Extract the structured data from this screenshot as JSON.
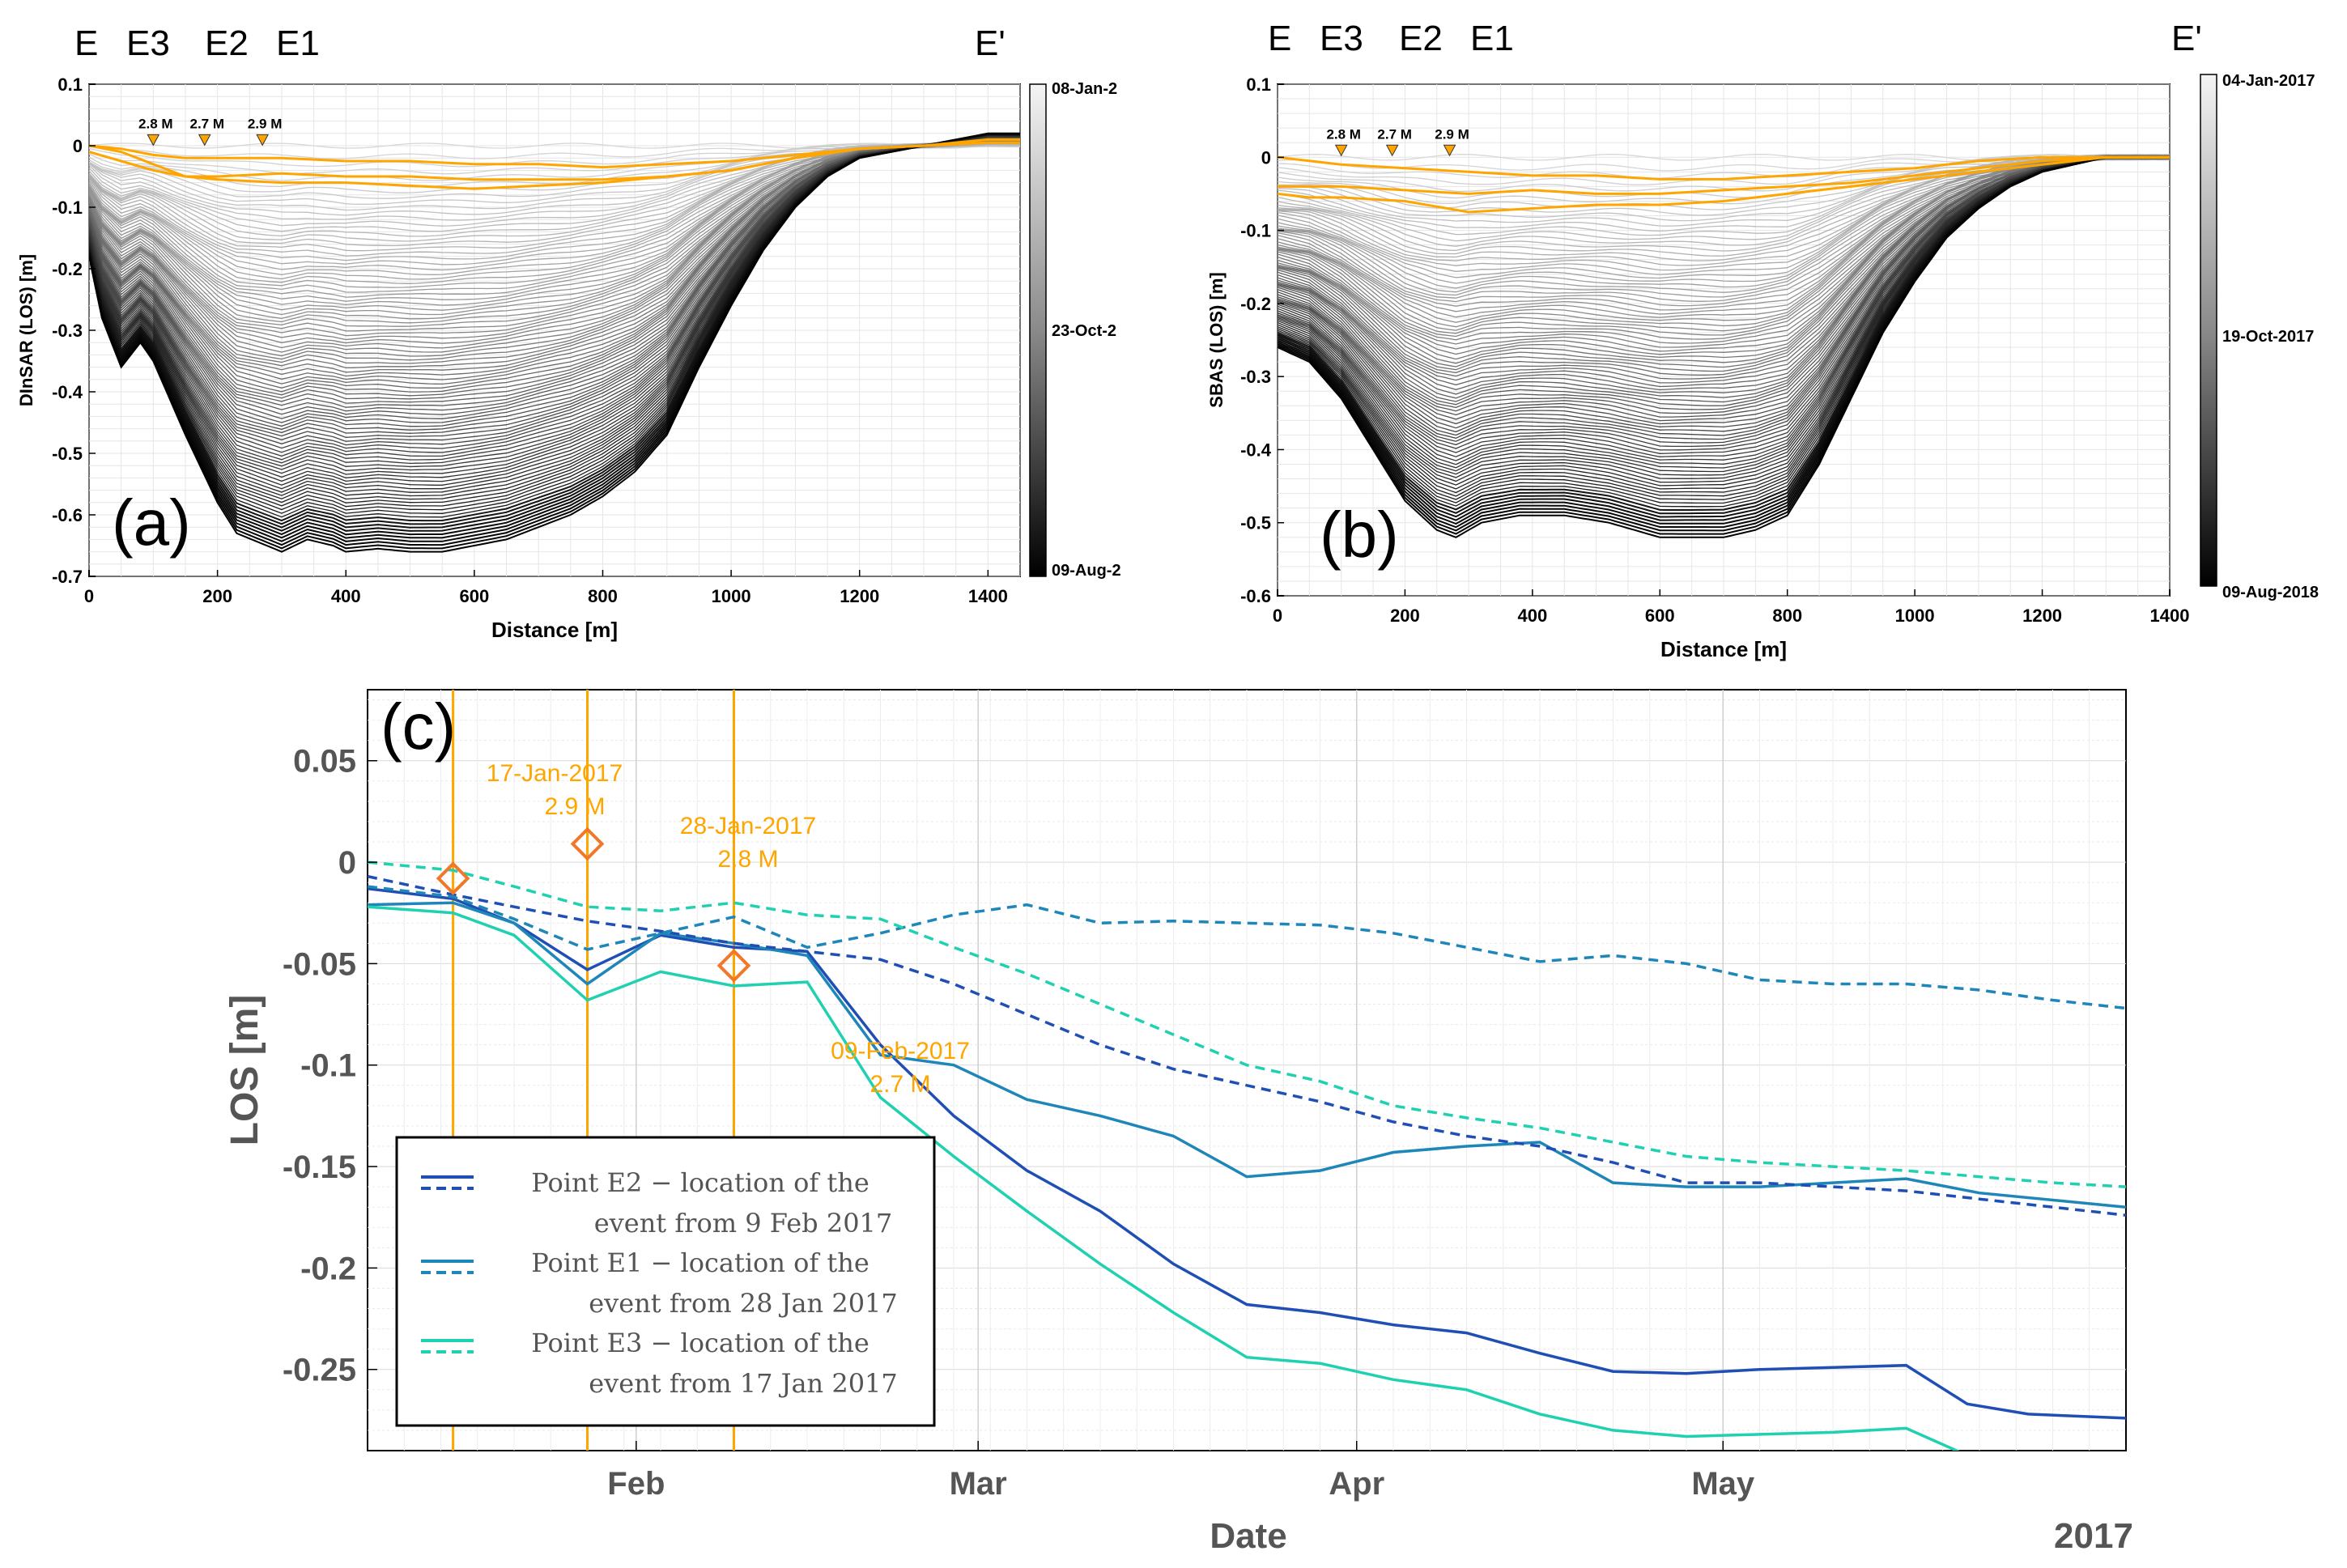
{
  "figure": {
    "panel_a_label": "(a)",
    "panel_b_label": "(b)",
    "panel_c_label": "(c)"
  },
  "profile_labels": {
    "start": "E",
    "e3": "E3",
    "e2": "E2",
    "e1": "E1",
    "end": "E'"
  },
  "colors": {
    "event_orange": "#FFA500",
    "marker_orange": "#F07828",
    "e2": "#1F4FB4",
    "e1": "#1E86B8",
    "e3": "#1FD1B0"
  },
  "chart_data": [
    {
      "id": "a",
      "type": "line",
      "xlabel": "Distance [m]",
      "ylabel": "DInSAR (LOS) [m]",
      "xlim": [
        0,
        1450
      ],
      "ylim": [
        -0.7,
        0.1
      ],
      "xticks": [
        0,
        200,
        400,
        600,
        800,
        1000,
        1200,
        1400
      ],
      "yticks": [
        -0.7,
        -0.6,
        -0.5,
        -0.4,
        -0.3,
        -0.2,
        -0.1,
        0,
        0.1
      ],
      "colorbar": {
        "top": "08-Jan-2",
        "middle": "23-Oct-2",
        "bottom": "09-Aug-2"
      },
      "event_markers": [
        {
          "distance": 100,
          "label": "2.8 M"
        },
        {
          "distance": 180,
          "label": "2.7 M"
        },
        {
          "distance": 270,
          "label": "2.9 M"
        }
      ],
      "series_count": 95,
      "final_profile": {
        "x": [
          0,
          20,
          50,
          80,
          100,
          150,
          200,
          230,
          300,
          340,
          380,
          400,
          450,
          500,
          550,
          600,
          650,
          700,
          750,
          800,
          850,
          900,
          950,
          1000,
          1050,
          1100,
          1150,
          1200,
          1250,
          1300,
          1350,
          1400,
          1450
        ],
        "y": [
          -0.18,
          -0.28,
          -0.36,
          -0.32,
          -0.35,
          -0.47,
          -0.58,
          -0.63,
          -0.66,
          -0.64,
          -0.65,
          -0.66,
          -0.655,
          -0.66,
          -0.66,
          -0.65,
          -0.64,
          -0.62,
          -0.6,
          -0.57,
          -0.53,
          -0.47,
          -0.36,
          -0.26,
          -0.17,
          -0.1,
          -0.05,
          -0.02,
          -0.01,
          0.0,
          0.01,
          0.02,
          0.02
        ]
      },
      "orange_profiles": [
        {
          "x": [
            0,
            50,
            100,
            150,
            200,
            300,
            400,
            500,
            600,
            700,
            800,
            900,
            1000,
            1100,
            1200,
            1300,
            1400,
            1450
          ],
          "y": [
            0,
            -0.01,
            -0.03,
            -0.05,
            -0.055,
            -0.06,
            -0.06,
            -0.065,
            -0.07,
            -0.065,
            -0.06,
            -0.05,
            -0.04,
            -0.02,
            -0.005,
            0.0,
            0.01,
            0.01
          ]
        },
        {
          "x": [
            0,
            50,
            100,
            150,
            200,
            300,
            400,
            500,
            600,
            700,
            800,
            900,
            1000,
            1100,
            1200,
            1300,
            1400,
            1450
          ],
          "y": [
            -0.01,
            -0.025,
            -0.04,
            -0.05,
            -0.05,
            -0.045,
            -0.05,
            -0.05,
            -0.055,
            -0.055,
            -0.055,
            -0.05,
            -0.04,
            -0.02,
            -0.005,
            0.0,
            0.005,
            0.005
          ]
        },
        {
          "x": [
            0,
            50,
            100,
            150,
            200,
            300,
            400,
            500,
            600,
            700,
            800,
            900,
            1000,
            1100,
            1200,
            1300,
            1400,
            1450
          ],
          "y": [
            0,
            -0.005,
            -0.015,
            -0.02,
            -0.02,
            -0.02,
            -0.025,
            -0.025,
            -0.03,
            -0.03,
            -0.035,
            -0.03,
            -0.025,
            -0.015,
            -0.005,
            0.0,
            0.005,
            0.005
          ]
        }
      ]
    },
    {
      "id": "b",
      "type": "line",
      "xlabel": "Distance [m]",
      "ylabel": "SBAS (LOS) [m]",
      "xlim": [
        0,
        1400
      ],
      "ylim": [
        -0.6,
        0.1
      ],
      "xticks": [
        0,
        200,
        400,
        600,
        800,
        1000,
        1200,
        1400
      ],
      "yticks": [
        -0.6,
        -0.5,
        -0.4,
        -0.3,
        -0.2,
        -0.1,
        0,
        0.1
      ],
      "colorbar": {
        "top": "04-Jan-2017",
        "middle": "19-Oct-2017",
        "bottom": "09-Aug-2018"
      },
      "event_markers": [
        {
          "distance": 100,
          "label": "2.8 M"
        },
        {
          "distance": 180,
          "label": "2.7 M"
        },
        {
          "distance": 270,
          "label": "2.9 M"
        }
      ],
      "series_count": 90,
      "final_profile": {
        "x": [
          0,
          50,
          100,
          150,
          200,
          250,
          280,
          320,
          380,
          450,
          520,
          600,
          650,
          700,
          750,
          800,
          850,
          900,
          950,
          1000,
          1050,
          1100,
          1150,
          1200,
          1250,
          1300,
          1350,
          1400
        ],
        "y": [
          -0.26,
          -0.28,
          -0.33,
          -0.4,
          -0.47,
          -0.51,
          -0.52,
          -0.5,
          -0.49,
          -0.49,
          -0.5,
          -0.52,
          -0.52,
          -0.52,
          -0.51,
          -0.49,
          -0.42,
          -0.33,
          -0.24,
          -0.17,
          -0.11,
          -0.07,
          -0.04,
          -0.02,
          -0.01,
          0.0,
          0.0,
          0.0
        ]
      },
      "orange_profiles": [
        {
          "x": [
            0,
            50,
            100,
            200,
            300,
            400,
            500,
            600,
            700,
            800,
            900,
            1000,
            1100,
            1200,
            1300,
            1400
          ],
          "y": [
            -0.05,
            -0.055,
            -0.055,
            -0.06,
            -0.075,
            -0.07,
            -0.065,
            -0.065,
            -0.06,
            -0.05,
            -0.04,
            -0.03,
            -0.02,
            -0.01,
            0.0,
            0.0
          ]
        },
        {
          "x": [
            0,
            50,
            100,
            200,
            300,
            400,
            500,
            600,
            700,
            800,
            900,
            1000,
            1100,
            1200,
            1300,
            1400
          ],
          "y": [
            -0.04,
            -0.04,
            -0.04,
            -0.045,
            -0.05,
            -0.045,
            -0.05,
            -0.05,
            -0.045,
            -0.04,
            -0.035,
            -0.025,
            -0.015,
            -0.005,
            0.0,
            0.0
          ]
        },
        {
          "x": [
            0,
            50,
            100,
            200,
            300,
            400,
            500,
            600,
            700,
            800,
            900,
            1000,
            1100,
            1200,
            1300,
            1400
          ],
          "y": [
            0.0,
            -0.005,
            -0.01,
            -0.015,
            -0.02,
            -0.025,
            -0.025,
            -0.03,
            -0.03,
            -0.025,
            -0.02,
            -0.015,
            -0.005,
            0.0,
            0.0,
            0.0
          ]
        }
      ]
    },
    {
      "id": "c",
      "type": "line",
      "xlabel": "Date",
      "ylabel": "LOS [m]",
      "year_label": "2017",
      "x_unit": "days since 01-Jan-2017",
      "xlim": [
        9,
        153
      ],
      "ylim": [
        -0.29,
        0.085
      ],
      "xticks": [
        {
          "value": 31,
          "label": "Feb"
        },
        {
          "value": 59,
          "label": "Mar"
        },
        {
          "value": 90,
          "label": "Apr"
        },
        {
          "value": 120,
          "label": "May"
        }
      ],
      "yticks": [
        0.05,
        0,
        -0.05,
        -0.1,
        -0.15,
        -0.2,
        -0.25
      ],
      "events": [
        {
          "day": 16,
          "date": "17-Jan-2017",
          "magnitude": "2.9 M",
          "los": -0.008
        },
        {
          "day": 27,
          "date": "28-Jan-2017",
          "magnitude": "2.8 M",
          "los": 0.009
        },
        {
          "day": 39,
          "date": "09-Feb-2017",
          "magnitude": "2.7 M",
          "los": -0.051
        }
      ],
      "legend": [
        {
          "line1": "Point E2  −  location of the",
          "line2": "event from 9 Feb 2017",
          "color": "#1F4FB4"
        },
        {
          "line1": "Point E1  −  location of the",
          "line2": "event from 28 Jan 2017",
          "color": "#1E86B8"
        },
        {
          "line1": "Point E3  −  location of the",
          "line2": "event from 17 Jan 2017",
          "color": "#1FD1B0"
        }
      ],
      "series": [
        {
          "name": "E2 DInSAR",
          "color": "#1F4FB4",
          "dashed": false,
          "x": [
            9,
            16,
            21,
            27,
            33,
            39,
            45,
            51,
            57,
            63,
            69,
            75,
            81,
            87,
            93,
            99,
            105,
            111,
            117,
            123,
            129,
            135,
            140,
            145,
            153
          ],
          "y": [
            -0.013,
            -0.018,
            -0.03,
            -0.053,
            -0.036,
            -0.042,
            -0.044,
            -0.09,
            -0.125,
            -0.152,
            -0.172,
            -0.198,
            -0.218,
            -0.222,
            -0.228,
            -0.232,
            -0.242,
            -0.251,
            -0.252,
            -0.25,
            -0.249,
            -0.248,
            -0.267,
            -0.272,
            -0.274
          ]
        },
        {
          "name": "E1 DInSAR",
          "color": "#1E86B8",
          "dashed": false,
          "x": [
            9,
            16,
            21,
            27,
            33,
            39,
            45,
            51,
            57,
            63,
            69,
            75,
            81,
            87,
            93,
            99,
            105,
            111,
            117,
            123,
            129,
            135,
            141,
            153
          ],
          "y": [
            -0.021,
            -0.02,
            -0.03,
            -0.06,
            -0.035,
            -0.04,
            -0.046,
            -0.095,
            -0.1,
            -0.117,
            -0.125,
            -0.135,
            -0.155,
            -0.152,
            -0.143,
            -0.14,
            -0.138,
            -0.158,
            -0.16,
            -0.16,
            -0.158,
            -0.156,
            -0.163,
            -0.17
          ]
        },
        {
          "name": "E3 DInSAR",
          "color": "#1FD1B0",
          "dashed": false,
          "x": [
            9,
            16,
            21,
            27,
            33,
            39,
            45,
            51,
            57,
            63,
            69,
            75,
            81,
            87,
            93,
            99,
            105,
            111,
            117,
            123,
            129,
            135,
            141
          ],
          "y": [
            -0.022,
            -0.025,
            -0.036,
            -0.068,
            -0.054,
            -0.061,
            -0.059,
            -0.116,
            -0.145,
            -0.172,
            -0.198,
            -0.222,
            -0.244,
            -0.247,
            -0.255,
            -0.26,
            -0.272,
            -0.28,
            -0.283,
            -0.282,
            -0.281,
            -0.279,
            -0.295
          ]
        },
        {
          "name": "E2 SBAS",
          "color": "#1F4FB4",
          "dashed": true,
          "x": [
            9,
            16,
            21,
            27,
            33,
            39,
            45,
            51,
            57,
            63,
            69,
            75,
            81,
            87,
            93,
            99,
            105,
            111,
            117,
            123,
            129,
            135,
            141,
            147,
            153
          ],
          "y": [
            -0.007,
            -0.016,
            -0.022,
            -0.029,
            -0.034,
            -0.04,
            -0.044,
            -0.048,
            -0.06,
            -0.075,
            -0.09,
            -0.102,
            -0.11,
            -0.118,
            -0.128,
            -0.135,
            -0.14,
            -0.148,
            -0.158,
            -0.158,
            -0.16,
            -0.162,
            -0.166,
            -0.17,
            -0.174
          ]
        },
        {
          "name": "E1 SBAS",
          "color": "#1E86B8",
          "dashed": true,
          "x": [
            9,
            16,
            21,
            27,
            33,
            39,
            45,
            51,
            57,
            63,
            69,
            75,
            81,
            87,
            93,
            99,
            105,
            111,
            117,
            123,
            129,
            135,
            141,
            147,
            153
          ],
          "y": [
            -0.012,
            -0.017,
            -0.028,
            -0.043,
            -0.035,
            -0.027,
            -0.042,
            -0.035,
            -0.026,
            -0.021,
            -0.03,
            -0.029,
            -0.03,
            -0.031,
            -0.035,
            -0.042,
            -0.049,
            -0.046,
            -0.05,
            -0.058,
            -0.06,
            -0.06,
            -0.063,
            -0.068,
            -0.072
          ]
        },
        {
          "name": "E3 SBAS",
          "color": "#1FD1B0",
          "dashed": true,
          "x": [
            9,
            16,
            21,
            27,
            33,
            39,
            45,
            51,
            57,
            63,
            69,
            75,
            81,
            87,
            93,
            99,
            105,
            111,
            117,
            123,
            129,
            135,
            141,
            147,
            153
          ],
          "y": [
            0.0,
            -0.004,
            -0.012,
            -0.022,
            -0.024,
            -0.02,
            -0.026,
            -0.028,
            -0.042,
            -0.055,
            -0.07,
            -0.085,
            -0.1,
            -0.108,
            -0.12,
            -0.126,
            -0.131,
            -0.138,
            -0.145,
            -0.148,
            -0.15,
            -0.152,
            -0.155,
            -0.158,
            -0.16
          ]
        }
      ]
    }
  ]
}
